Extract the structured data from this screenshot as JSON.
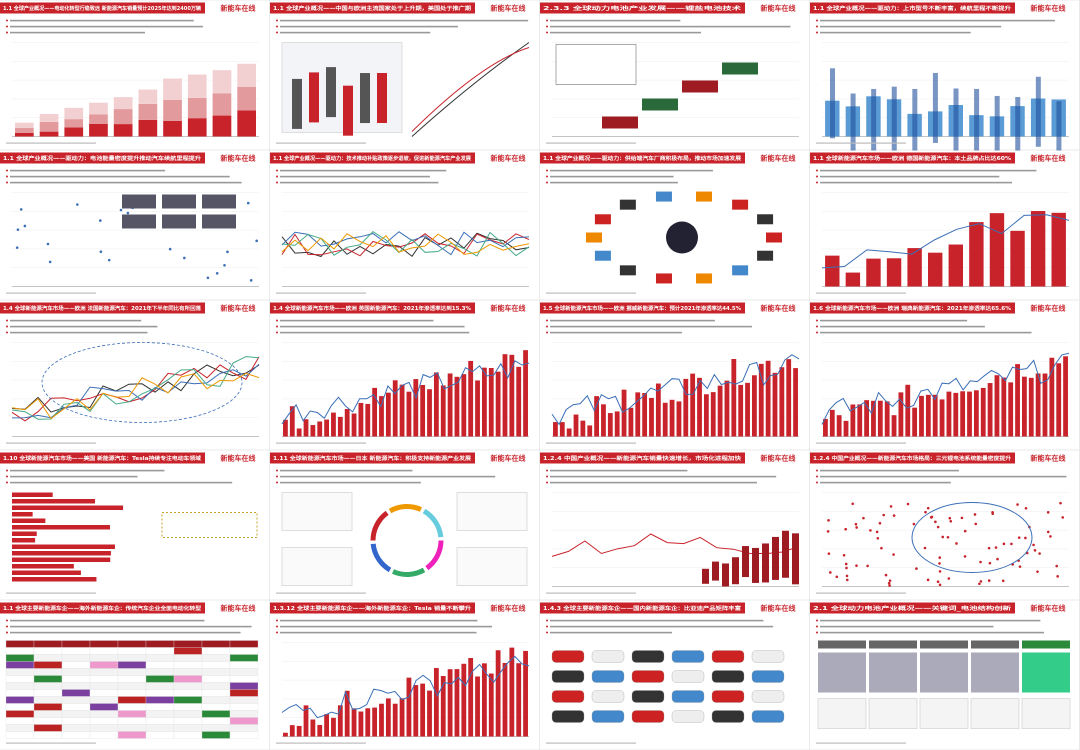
{
  "brand": "新能车在线",
  "slides": [
    {
      "title": "1.1 全球产业概况——电动化转型行稳致远 新能源汽车销量预计2025年达到2400万辆"
    },
    {
      "title": "1.1 全球产业概况——中国与欧洲主流国家处于上升期，美国处于推广期"
    },
    {
      "title": "2.3.3 全球动力电池产业发展——锂盐电池技术"
    },
    {
      "title": "1.1 全球产业概况——驱动力：上市型号不断丰富，续航里程不断提升"
    },
    {
      "title": "1.1 全球产业概况——驱动力：电池能量密度提升推动汽车续航里程提升"
    },
    {
      "title": "1.1 全球产业概况——驱动力：技术推动补贴政策逐步退坡，促进新能源汽车产业发展"
    },
    {
      "title": "1.1 全球产业概况——驱动力：供给端汽车厂商积极布局，推动市场加速发展"
    },
    {
      "title": "1.1 全球新能源汽车市场——欧洲 德国新能源汽车：本土品牌占比达60%"
    },
    {
      "title": "1.4 全球新能源汽车市场——欧洲 法国新能源汽车：2021年下半年同比有所回落"
    },
    {
      "title": "1.4 全球新能源汽车市场——欧洲 英国新能源汽车：2021年渗透率达到15.3%"
    },
    {
      "title": "1.5 全球新能源汽车市场——欧洲 挪威新能源汽车：预计2021年渗透率达44.5%"
    },
    {
      "title": "1.6 全球新能源汽车市场——欧洲 瑞典新能源汽车：2021年渗透率达65.6%"
    },
    {
      "title": "1.10 全球新能源汽车市场——美国 新能源汽车：Tesla持续专注电动车领域"
    },
    {
      "title": "1.11 全球新能源汽车市场——日本 新能源汽车：积极支持新能源产业发展"
    },
    {
      "title": "1.2.4 中国产业概况——新能源汽车销量快速增长，市场化进程加快"
    },
    {
      "title": "1.2.4 中国产业概况——新能源汽车市场格局：三元锂电池系统能量密度提升"
    },
    {
      "title": "1.1 全球主要新能源车企——海外新能源车企：传统汽车企业全面电动化转型"
    },
    {
      "title": "1.3.12 全球主要新能源车企——海外新能源车企：Tesla 销量不断攀升"
    },
    {
      "title": "1.4.3 全球主要新能源车企——国内新能源车企：比亚迪产品矩阵丰富"
    },
    {
      "title": "2.1 全球动力电池产业概况——关键词_电池结构创新"
    }
  ]
}
